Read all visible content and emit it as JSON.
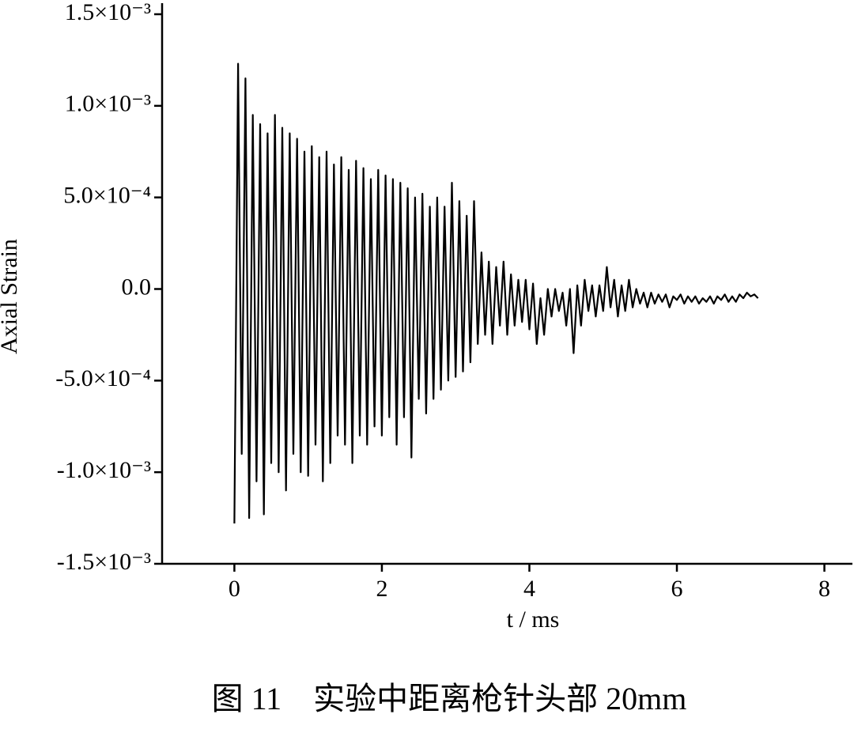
{
  "chart_data": {
    "type": "line",
    "caption": "图 11　实验中距离枪针头部 20mm",
    "xlabel": "t / ms",
    "ylabel": "Axial Strain",
    "color": "#000000",
    "xlim": [
      -0.98,
      8.38
    ],
    "ylim": [
      -0.0015,
      0.0015
    ],
    "xticks": [
      0,
      2,
      4,
      6,
      8
    ],
    "yticks": [
      {
        "value": 0.0015,
        "label": "1.5×10⁻³"
      },
      {
        "value": 0.001,
        "label": "1.0×10⁻³"
      },
      {
        "value": 0.0005,
        "label": "5.0×10⁻⁴"
      },
      {
        "value": 0,
        "label": "0.0"
      },
      {
        "value": -0.0005,
        "label": "-5.0×10⁻⁴"
      },
      {
        "value": -0.001,
        "label": "-1.0×10⁻³"
      },
      {
        "value": -0.0015,
        "label": "-1.5×10⁻³"
      }
    ],
    "x": [
      0,
      0.05,
      0.1,
      0.15,
      0.2,
      0.25,
      0.3,
      0.35,
      0.4,
      0.45,
      0.5,
      0.55,
      0.6,
      0.65,
      0.7,
      0.75,
      0.8,
      0.85,
      0.9,
      0.95,
      1,
      1.05,
      1.1,
      1.15,
      1.2,
      1.25,
      1.3,
      1.35,
      1.4,
      1.45,
      1.5,
      1.55,
      1.6,
      1.65,
      1.7,
      1.75,
      1.8,
      1.85,
      1.9,
      1.95,
      2,
      2.05,
      2.1,
      2.15,
      2.2,
      2.25,
      2.3,
      2.35,
      2.4,
      2.45,
      2.5,
      2.55,
      2.6,
      2.65,
      2.7,
      2.75,
      2.8,
      2.85,
      2.9,
      2.95,
      3,
      3.05,
      3.1,
      3.15,
      3.2,
      3.25,
      3.3,
      3.35,
      3.4,
      3.45,
      3.5,
      3.55,
      3.6,
      3.65,
      3.7,
      3.75,
      3.8,
      3.85,
      3.9,
      3.95,
      4,
      4.05,
      4.1,
      4.15,
      4.2,
      4.25,
      4.3,
      4.35,
      4.4,
      4.45,
      4.5,
      4.55,
      4.6,
      4.65,
      4.7,
      4.75,
      4.8,
      4.85,
      4.9,
      4.95,
      5,
      5.05,
      5.1,
      5.15,
      5.2,
      5.25,
      5.3,
      5.35,
      5.4,
      5.45,
      5.5,
      5.55,
      5.6,
      5.65,
      5.7,
      5.75,
      5.8,
      5.85,
      5.9,
      5.95,
      6,
      6.05,
      6.1,
      6.15,
      6.2,
      6.25,
      6.3,
      6.35,
      6.4,
      6.45,
      6.5,
      6.55,
      6.6,
      6.65,
      6.7,
      6.75,
      6.8,
      6.85,
      6.9,
      6.95,
      7,
      7.05,
      7.1
    ],
    "values": [
      -0.00128,
      0.00123,
      -0.0009,
      0.00115,
      -0.00125,
      0.00095,
      -0.00105,
      0.0009,
      -0.00123,
      0.00085,
      -0.00095,
      0.00095,
      -0.001,
      0.00088,
      -0.0011,
      0.00085,
      -0.0009,
      0.00082,
      -0.001,
      0.00075,
      -0.00102,
      0.00078,
      -0.00085,
      0.00072,
      -0.00105,
      0.00075,
      -0.00095,
      0.00068,
      -0.0008,
      0.00072,
      -0.00085,
      0.00065,
      -0.00095,
      0.0007,
      -0.0008,
      0.00066,
      -0.00085,
      0.0006,
      -0.00075,
      0.00065,
      -0.0008,
      0.00062,
      -0.0007,
      0.0006,
      -0.00085,
      0.00058,
      -0.0007,
      0.00055,
      -0.00092,
      0.0005,
      -0.0006,
      0.00052,
      -0.00068,
      0.00045,
      -0.0006,
      0.0005,
      -0.00055,
      0.00045,
      -0.0005,
      0.00058,
      -0.00048,
      0.00048,
      -0.00045,
      0.0004,
      -0.0004,
      0.00048,
      -0.0003,
      0.0002,
      -0.00025,
      0.00015,
      -0.0003,
      0.00012,
      -0.0002,
      0.00015,
      -0.00025,
      8e-05,
      -0.0002,
      5e-05,
      -0.00018,
      5e-05,
      -0.00022,
      3e-05,
      -0.0003,
      -5e-05,
      -0.00025,
      0,
      -0.00015,
      0,
      -0.00012,
      -2e-05,
      -0.0002,
      0,
      -0.00035,
      2e-05,
      -0.0002,
      5e-05,
      -0.00012,
      2e-05,
      -0.00015,
      2e-05,
      -0.00012,
      0.00012,
      -0.0001,
      5e-05,
      -0.00015,
      2e-05,
      -0.00012,
      5e-05,
      -0.0001,
      0,
      -8e-05,
      -2e-05,
      -0.0001,
      -2e-05,
      -8e-05,
      -3e-05,
      -7e-05,
      -3e-05,
      -0.0001,
      -4e-05,
      -6e-05,
      -3e-05,
      -8e-05,
      -4e-05,
      -7e-05,
      -4e-05,
      -8e-05,
      -5e-05,
      -7e-05,
      -4e-05,
      -8e-05,
      -4e-05,
      -6e-05,
      -3e-05,
      -7e-05,
      -4e-05,
      -7e-05,
      -3e-05,
      -5e-05,
      -2e-05,
      -4e-05,
      -3e-05,
      -5e-05
    ]
  }
}
